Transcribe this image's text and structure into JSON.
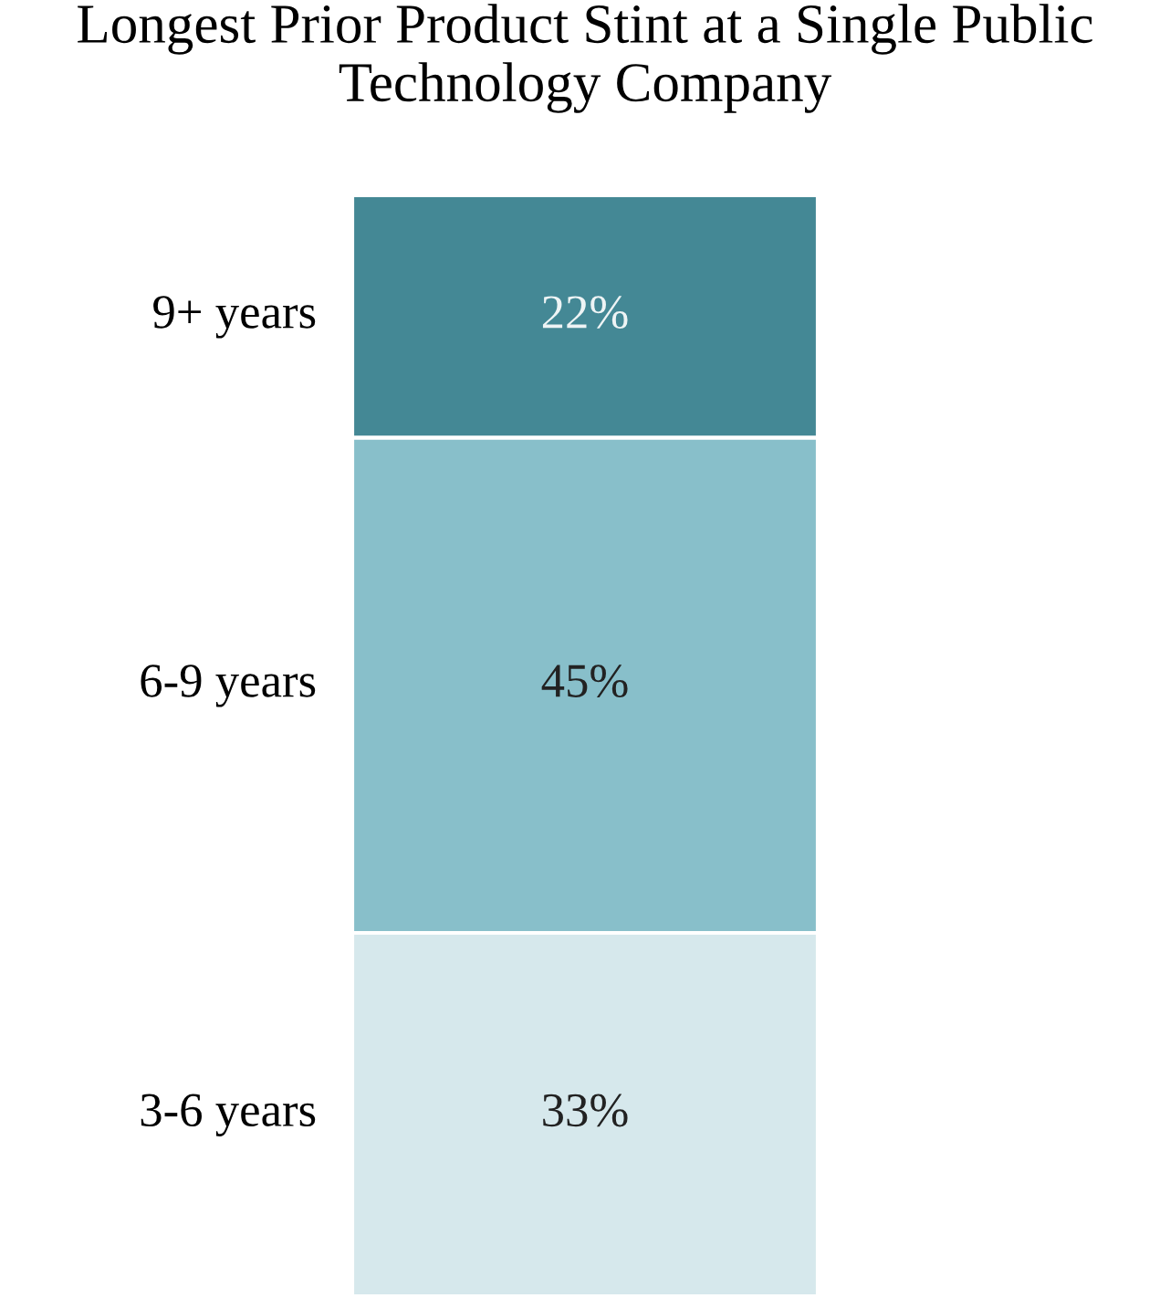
{
  "chart_data": {
    "type": "bar",
    "title": "Longest Prior Product Stint at a Single Public Technology Company",
    "stacked": true,
    "categories": [
      null
    ],
    "tick_labels": false,
    "grid": false,
    "legend": false,
    "series": [
      {
        "name": "3-6 years",
        "color": "#d6e8ec",
        "values": [
          33
        ],
        "value_labels": [
          "33%"
        ]
      },
      {
        "name": "6-9 years",
        "color": "#88bfca",
        "values": [
          45
        ],
        "value_labels": [
          "45%"
        ]
      },
      {
        "name": "9+ years",
        "color": "#448895",
        "values": [
          22
        ],
        "value_labels": [
          "22%"
        ]
      }
    ]
  }
}
